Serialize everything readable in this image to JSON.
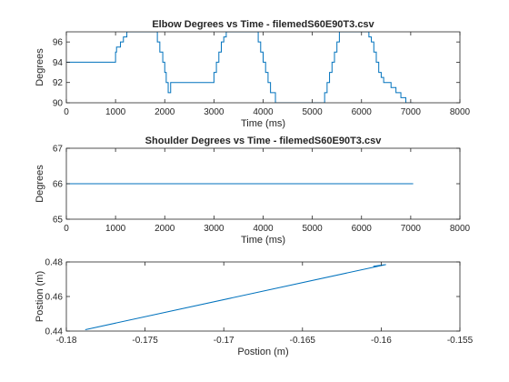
{
  "chart_data": [
    {
      "type": "line",
      "title": "Elbow Degrees vs Time - filemedS60E90T3.csv",
      "xlabel": "Time (ms)",
      "ylabel": "Degrees",
      "xlim": [
        0,
        8000
      ],
      "ylim": [
        90,
        97
      ],
      "xticks": [
        0,
        1000,
        2000,
        3000,
        4000,
        5000,
        6000,
        7000,
        8000
      ],
      "yticks": [
        90,
        92,
        94,
        96
      ],
      "xtick_labels": [
        "0",
        "1000",
        "2000",
        "3000",
        "4000",
        "5000",
        "6000",
        "7000",
        "8000"
      ],
      "ytick_labels": [
        "90",
        "92",
        "94",
        "96"
      ],
      "color": "#0072BD",
      "step": true,
      "series": [
        {
          "x": [
            0,
            1000,
            1020,
            1100,
            1160,
            1230,
            1300,
            1850,
            1900,
            1960,
            2000,
            2030,
            2070,
            2120,
            2180,
            3000,
            3050,
            3100,
            3150,
            3200,
            3250,
            3300,
            3900,
            3950,
            4000,
            4050,
            4100,
            4150,
            4200,
            4250,
            4300,
            5200,
            5250,
            5300,
            5350,
            5400,
            5450,
            5500,
            5550,
            6150,
            6200,
            6250,
            6300,
            6350,
            6400,
            6450,
            6500,
            6600,
            6700,
            6800,
            6900,
            7050
          ],
          "y": [
            94,
            95,
            95.5,
            96,
            96.5,
            97,
            97,
            96,
            95,
            94,
            93,
            92,
            91,
            92,
            92,
            93,
            94,
            95,
            96,
            96.5,
            97,
            97,
            96,
            95,
            94,
            93,
            92,
            91,
            91,
            90,
            90,
            90,
            91,
            92,
            93,
            94,
            95,
            96,
            97,
            96.5,
            96,
            95,
            94,
            93,
            92.5,
            92,
            92,
            91.5,
            91,
            90.5,
            90,
            90
          ]
        }
      ]
    },
    {
      "type": "line",
      "title": "Shoulder Degrees vs Time - filemedS60E90T3.csv",
      "xlabel": "Time (ms)",
      "ylabel": "Degrees",
      "xlim": [
        0,
        8000
      ],
      "ylim": [
        65,
        67
      ],
      "xticks": [
        0,
        1000,
        2000,
        3000,
        4000,
        5000,
        6000,
        7000,
        8000
      ],
      "yticks": [
        65,
        66,
        67
      ],
      "xtick_labels": [
        "0",
        "1000",
        "2000",
        "3000",
        "4000",
        "5000",
        "6000",
        "7000",
        "8000"
      ],
      "ytick_labels": [
        "65",
        "66",
        "67"
      ],
      "color": "#0072BD",
      "step": false,
      "series": [
        {
          "x": [
            0,
            7050
          ],
          "y": [
            66,
            66
          ]
        }
      ]
    },
    {
      "type": "line",
      "title": "",
      "xlabel": "Postion (m)",
      "ylabel": "Postion (m)",
      "xlim": [
        -0.18,
        -0.155
      ],
      "ylim": [
        0.44,
        0.48
      ],
      "xticks": [
        -0.18,
        -0.175,
        -0.17,
        -0.165,
        -0.16,
        -0.155
      ],
      "yticks": [
        0.44,
        0.46,
        0.48
      ],
      "xtick_labels": [
        "-0.18",
        "-0.175",
        "-0.17",
        "-0.165",
        "-0.16",
        "-0.155"
      ],
      "ytick_labels": [
        "0.44",
        "0.46",
        "0.48"
      ],
      "color": "#0072BD",
      "step": false,
      "series": [
        {
          "x": [
            -0.1788,
            -0.1597,
            -0.1605
          ],
          "y": [
            0.4408,
            0.4785,
            0.4775
          ]
        }
      ]
    }
  ]
}
